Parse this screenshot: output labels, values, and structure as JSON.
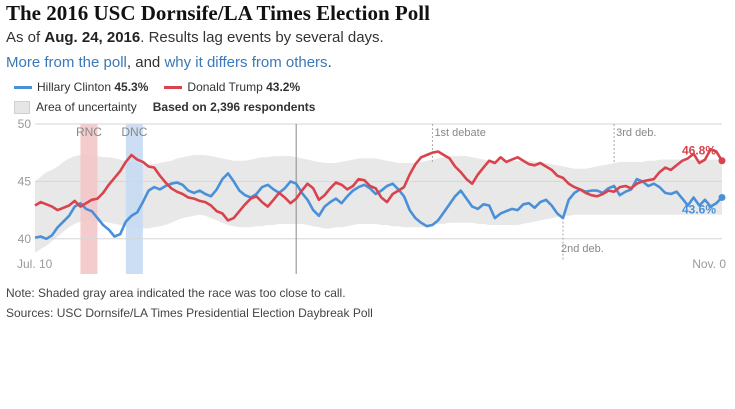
{
  "header": {
    "title": "The 2016 USC Dornsife/LA Times Election Poll",
    "subtitle_prefix": "As of",
    "subtitle_date": "Aug. 24, 2016",
    "subtitle_suffix": ". Results lag events by several days.",
    "link_more": "More from the poll",
    "link_sep": ", and",
    "link_why": "why it differs from others",
    "link_end": "."
  },
  "legend": {
    "clinton_label": "Hillary Clinton",
    "clinton_value": "45.3%",
    "trump_label": "Donald Trump",
    "trump_value": "43.2%",
    "uncertainty_label": "Area of uncertainty",
    "respondents": "Based on 2,396 respondents"
  },
  "notes": {
    "shaded": "Note: Shaded gray area indicated the race was too close to call.",
    "sources": "Sources: USC Dornsife/LA Times Presidential Election Daybreak Poll"
  },
  "colors": {
    "clinton": "#4a90d9",
    "trump": "#d9434d",
    "uncertainty": "#e8e8e8",
    "rnc_band": "#f4c7c9",
    "dnc_band": "#c6daf3"
  },
  "chart_data": {
    "type": "line",
    "x_start": "Jul. 10",
    "x_end": "Nov. 0",
    "xlim": [
      0,
      121
    ],
    "ylim": [
      38.5,
      50
    ],
    "yticks": [
      40,
      45,
      50
    ],
    "grid": true,
    "events": [
      {
        "label": "RNC",
        "day": 8,
        "width_days": 3,
        "kind": "band",
        "color": "red"
      },
      {
        "label": "DNC",
        "day": 16,
        "width_days": 3,
        "kind": "band",
        "color": "blue"
      },
      {
        "label": "",
        "day": 46,
        "kind": "line"
      },
      {
        "label": "1st debate",
        "day": 70,
        "kind": "top"
      },
      {
        "label": "2nd deb.",
        "day": 93,
        "kind": "bottom"
      },
      {
        "label": "3rd deb.",
        "day": 102,
        "kind": "top"
      }
    ],
    "end_labels": {
      "trump": "46.8%",
      "clinton": "43.6%"
    },
    "series": [
      {
        "name": "Hillary Clinton",
        "key": "clinton",
        "values": [
          40.1,
          40.2,
          40.0,
          40.3,
          41.0,
          41.5,
          42.0,
          42.8,
          43.1,
          42.6,
          42.4,
          41.8,
          41.2,
          40.8,
          40.2,
          40.4,
          41.5,
          42.0,
          42.3,
          43.2,
          44.2,
          44.5,
          44.3,
          44.6,
          44.8,
          44.9,
          44.7,
          44.2,
          44.0,
          44.2,
          43.9,
          43.7,
          44.3,
          45.2,
          45.7,
          45.0,
          44.2,
          43.8,
          43.6,
          43.9,
          44.5,
          44.7,
          44.3,
          44.0,
          44.4,
          45.0,
          44.8,
          44.0,
          43.4,
          42.5,
          42.0,
          42.8,
          43.2,
          43.5,
          43.1,
          43.7,
          44.2,
          44.5,
          44.7,
          44.4,
          43.9,
          44.2,
          44.6,
          44.8,
          44.3,
          43.7,
          42.5,
          41.8,
          41.4,
          41.1,
          41.2,
          41.6,
          42.3,
          43.0,
          43.7,
          44.2,
          43.5,
          42.8,
          42.6,
          43.0,
          42.9,
          41.8,
          42.2,
          42.4,
          42.6,
          42.5,
          43.0,
          43.1,
          42.7,
          43.2,
          43.4,
          42.9,
          42.2,
          41.8,
          43.4,
          44.0,
          44.3,
          44.1,
          44.2,
          44.2,
          44.0,
          44.4,
          44.6,
          43.8,
          44.1,
          44.3,
          45.2,
          45.0,
          44.6,
          44.8,
          44.5,
          44.0,
          43.9,
          44.1,
          43.5,
          42.9,
          43.6,
          42.9,
          43.4,
          42.8,
          43.1,
          43.6
        ]
      },
      {
        "name": "Donald Trump",
        "key": "trump",
        "values": [
          42.9,
          43.2,
          43.0,
          42.8,
          42.5,
          42.7,
          42.9,
          43.3,
          42.8,
          43.1,
          43.4,
          43.5,
          44.0,
          44.7,
          45.3,
          45.9,
          46.7,
          47.3,
          46.9,
          46.7,
          46.3,
          46.2,
          45.5,
          44.9,
          44.4,
          44.1,
          43.9,
          43.6,
          43.5,
          43.3,
          43.2,
          42.9,
          42.4,
          42.2,
          41.6,
          41.8,
          42.4,
          43.0,
          43.5,
          43.7,
          43.2,
          42.8,
          43.4,
          44.0,
          43.6,
          43.1,
          43.5,
          44.2,
          44.8,
          44.4,
          43.4,
          43.8,
          44.4,
          44.9,
          44.7,
          44.3,
          44.6,
          45.2,
          45.1,
          44.6,
          44.4,
          43.6,
          43.2,
          43.9,
          44.2,
          44.5,
          45.6,
          46.5,
          47.1,
          47.3,
          47.5,
          47.6,
          47.3,
          47.0,
          46.3,
          45.8,
          45.2,
          44.8,
          45.6,
          46.2,
          46.8,
          46.6,
          47.1,
          46.7,
          46.9,
          47.1,
          46.8,
          46.5,
          46.4,
          46.6,
          46.3,
          46.0,
          45.5,
          45.3,
          44.8,
          44.5,
          44.3,
          44.0,
          43.8,
          43.7,
          43.9,
          44.2,
          44.1,
          44.5,
          44.6,
          44.4,
          44.8,
          45.0,
          45.1,
          45.2,
          45.8,
          46.2,
          46.0,
          46.4,
          46.8,
          47.0,
          47.4,
          46.6,
          46.9,
          47.8,
          47.6,
          46.8
        ]
      },
      {
        "name": "Area of uncertainty",
        "key": "band",
        "upper": [
          45.0,
          45.4,
          45.8,
          46.0,
          46.3,
          46.7,
          47.0,
          47.2,
          47.3,
          47.4,
          47.3,
          47.2,
          47.1,
          47.1,
          47.0,
          46.9,
          46.8,
          46.7,
          46.6,
          46.5,
          46.5,
          46.5,
          46.6,
          46.7,
          46.8,
          47.0,
          47.1,
          47.2,
          47.3,
          47.3,
          47.3,
          47.2,
          47.1,
          47.0,
          46.9,
          46.8,
          46.8,
          46.8,
          46.9,
          47.0,
          47.1,
          47.1,
          47.2,
          47.2,
          47.2,
          47.2,
          47.1,
          47.0,
          46.9,
          46.8,
          46.7,
          46.6,
          46.6,
          46.6,
          46.7,
          46.8,
          46.9,
          47.0,
          47.0,
          47.0,
          47.0,
          46.9,
          46.8,
          46.7,
          46.6,
          46.6,
          46.6,
          46.6,
          46.7,
          46.8,
          46.9,
          47.0,
          47.1,
          47.2,
          47.2,
          47.2,
          47.2,
          47.1,
          47.0,
          46.9,
          46.8,
          46.8,
          46.8,
          46.8,
          46.8,
          46.8,
          46.8,
          46.8,
          46.7,
          46.7,
          46.6,
          46.5,
          46.4,
          46.3,
          46.2,
          46.1,
          46.1,
          46.1,
          46.2,
          46.3,
          46.4,
          46.5,
          46.6,
          46.7,
          46.7,
          46.7,
          46.7,
          46.7,
          46.8,
          46.8,
          46.9,
          46.9,
          46.9,
          46.9,
          46.9,
          46.9,
          46.9,
          46.9,
          46.9,
          46.9,
          46.9,
          46.9
        ],
        "lower": [
          38.8,
          39.1,
          39.4,
          39.8,
          40.2,
          40.6,
          41.0,
          41.3,
          41.5,
          41.6,
          41.6,
          41.5,
          41.5,
          41.4,
          41.3,
          41.2,
          41.1,
          41.0,
          40.9,
          40.9,
          40.9,
          41.0,
          41.1,
          41.2,
          41.4,
          41.6,
          41.8,
          41.9,
          42.0,
          42.1,
          42.0,
          41.8,
          41.6,
          41.4,
          41.2,
          41.1,
          41.0,
          41.0,
          41.0,
          41.1,
          41.1,
          41.2,
          41.2,
          41.3,
          41.3,
          41.3,
          41.3,
          41.3,
          41.2,
          41.1,
          41.0,
          40.9,
          40.9,
          41.0,
          41.0,
          41.1,
          41.2,
          41.3,
          41.3,
          41.3,
          41.3,
          41.2,
          41.2,
          41.1,
          41.1,
          41.0,
          41.0,
          41.0,
          41.0,
          41.1,
          41.2,
          41.3,
          41.3,
          41.4,
          41.4,
          41.4,
          41.4,
          41.4,
          41.3,
          41.3,
          41.2,
          41.2,
          41.2,
          41.2,
          41.2,
          41.2,
          41.3,
          41.4,
          41.5,
          41.6,
          41.7,
          41.8,
          41.9,
          42.0,
          42.0,
          42.1,
          42.1,
          42.1,
          42.1,
          42.1,
          42.1,
          42.1,
          42.1,
          42.1,
          42.1,
          42.1,
          42.1,
          42.1,
          42.1,
          42.1,
          42.1,
          42.1,
          42.1,
          42.1,
          42.1,
          42.1,
          42.1,
          42.1,
          42.1,
          42.1,
          42.1,
          42.1
        ]
      }
    ]
  }
}
